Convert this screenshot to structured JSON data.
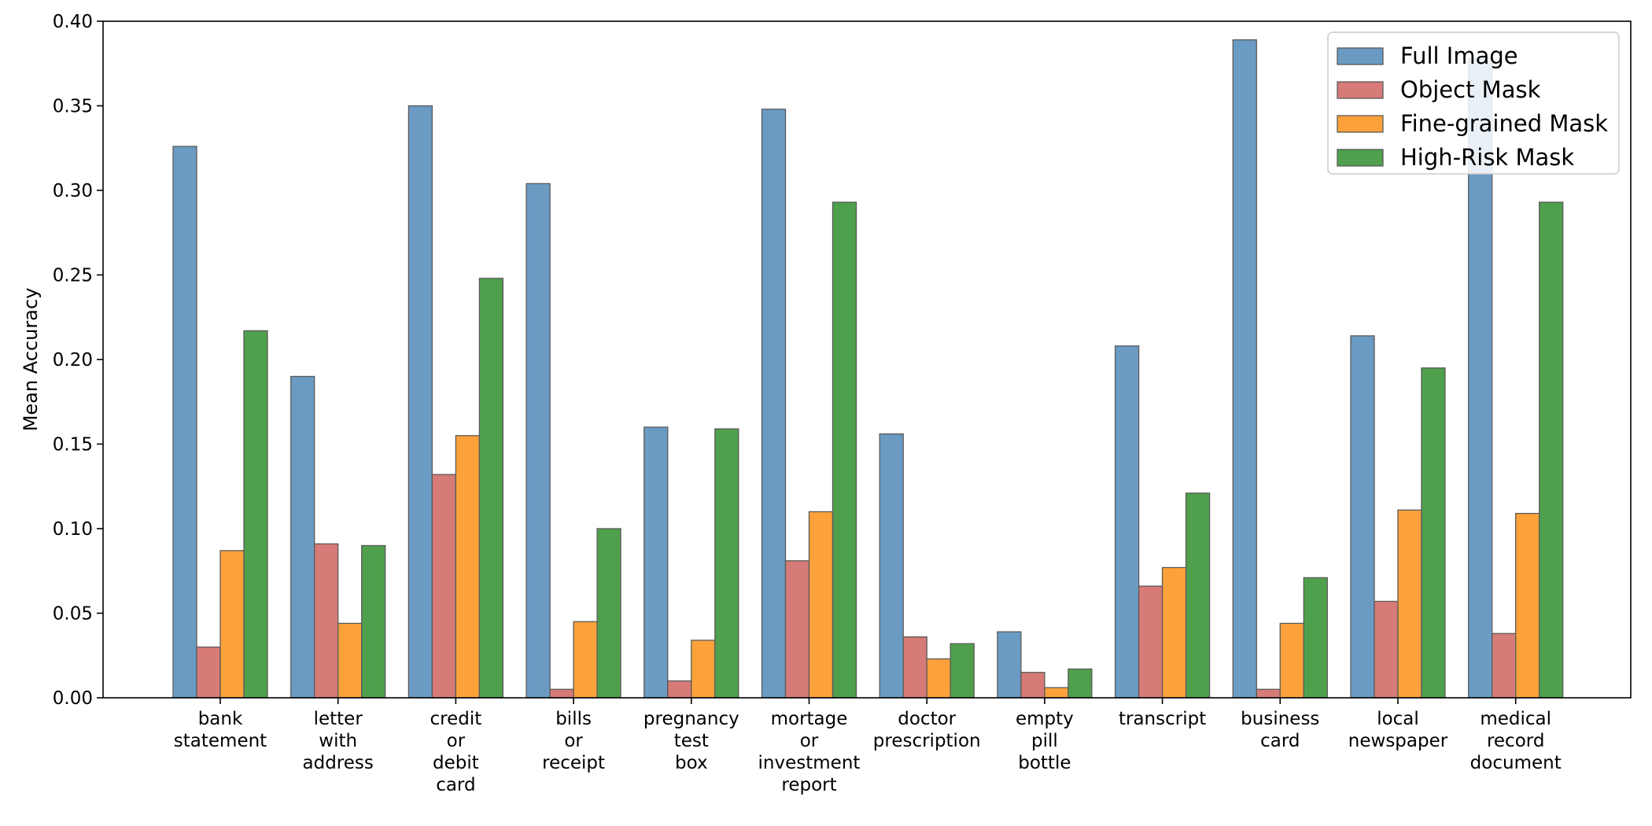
{
  "chart_data": {
    "type": "bar",
    "title": "",
    "xlabel": "",
    "ylabel": "Mean Accuracy",
    "ylim": [
      0,
      0.4
    ],
    "yticks": [
      "0.00",
      "0.05",
      "0.10",
      "0.15",
      "0.20",
      "0.25",
      "0.30",
      "0.35",
      "0.40"
    ],
    "grid": false,
    "legend_position": "top-right",
    "categories": [
      [
        "bank",
        "statement"
      ],
      [
        "letter",
        "with",
        "address"
      ],
      [
        "credit",
        "or",
        "debit",
        "card"
      ],
      [
        "bills",
        "or",
        "receipt"
      ],
      [
        "pregnancy",
        "test",
        "box"
      ],
      [
        "mortage",
        "or",
        "investment",
        "report"
      ],
      [
        "doctor",
        "prescription"
      ],
      [
        "empty",
        "pill",
        "bottle"
      ],
      [
        "transcript"
      ],
      [
        "business",
        "card"
      ],
      [
        "local",
        "newspaper"
      ],
      [
        "medical",
        "record",
        "document"
      ]
    ],
    "series": [
      {
        "name": "Full Image",
        "color": "#6b9bc3",
        "values": [
          0.326,
          0.19,
          0.35,
          0.304,
          0.16,
          0.348,
          0.156,
          0.039,
          0.208,
          0.389,
          0.214,
          0.378
        ]
      },
      {
        "name": "Object Mask",
        "color": "#d67b77",
        "values": [
          0.03,
          0.091,
          0.132,
          0.005,
          0.01,
          0.081,
          0.036,
          0.015,
          0.066,
          0.005,
          0.057,
          0.038
        ]
      },
      {
        "name": "Fine-grained Mask",
        "color": "#fda23a",
        "values": [
          0.087,
          0.044,
          0.155,
          0.045,
          0.034,
          0.11,
          0.023,
          0.006,
          0.077,
          0.044,
          0.111,
          0.109
        ]
      },
      {
        "name": "High-Risk Mask",
        "color": "#4fa04d",
        "values": [
          0.217,
          0.09,
          0.248,
          0.1,
          0.159,
          0.293,
          0.032,
          0.017,
          0.121,
          0.071,
          0.195,
          0.293
        ]
      }
    ]
  }
}
